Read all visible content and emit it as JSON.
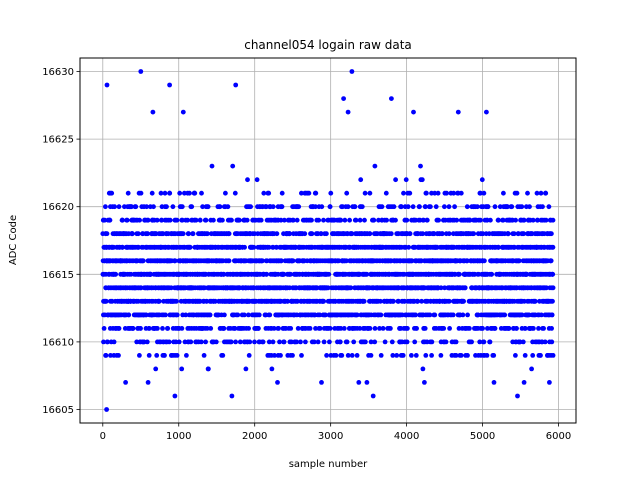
{
  "chart_data": {
    "type": "scatter",
    "title": "channel054 logain raw data",
    "xlabel": "sample number",
    "ylabel": "ADC Code",
    "xlim": [
      -300,
      6230
    ],
    "ylim": [
      16604,
      16631
    ],
    "xticks": [
      0,
      1000,
      2000,
      3000,
      4000,
      5000,
      6000
    ],
    "yticks": [
      16605,
      16610,
      16615,
      16620,
      16625,
      16630
    ],
    "grid": true,
    "marker_color": "#0000ff",
    "x_range": [
      0,
      5925
    ],
    "dense_band": [
      16610,
      16620
    ],
    "highlight_points": [
      {
        "x": 50,
        "y": 16605
      },
      {
        "x": 55,
        "y": 16629
      },
      {
        "x": 500,
        "y": 16630
      },
      {
        "x": 880,
        "y": 16629
      },
      {
        "x": 950,
        "y": 16606
      },
      {
        "x": 1700,
        "y": 16606
      },
      {
        "x": 1750,
        "y": 16629
      },
      {
        "x": 3280,
        "y": 16630
      },
      {
        "x": 3170,
        "y": 16628
      },
      {
        "x": 3800,
        "y": 16628
      },
      {
        "x": 3560,
        "y": 16606
      },
      {
        "x": 5460,
        "y": 16606
      },
      {
        "x": 660,
        "y": 16627
      },
      {
        "x": 1060,
        "y": 16627
      },
      {
        "x": 3230,
        "y": 16627
      },
      {
        "x": 4680,
        "y": 16627
      },
      {
        "x": 5050,
        "y": 16627
      },
      {
        "x": 4090,
        "y": 16627
      },
      {
        "x": 2300,
        "y": 16607
      },
      {
        "x": 2880,
        "y": 16607
      },
      {
        "x": 3370,
        "y": 16607
      },
      {
        "x": 5150,
        "y": 16607
      },
      {
        "x": 5880,
        "y": 16607
      },
      {
        "x": 300,
        "y": 16607
      }
    ]
  }
}
